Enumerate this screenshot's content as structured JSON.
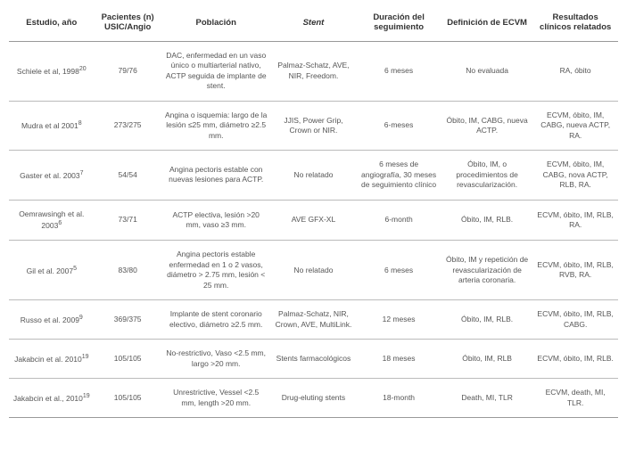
{
  "columns": [
    {
      "key": "study",
      "label": "Estudio, año",
      "italic": false
    },
    {
      "key": "n",
      "label": "Pacientes (n) USIC/Angio",
      "italic": false
    },
    {
      "key": "pop",
      "label": "Población",
      "italic": false
    },
    {
      "key": "stent",
      "label": "Stent",
      "italic": true
    },
    {
      "key": "follow",
      "label": "Duración del seguimiento",
      "italic": false
    },
    {
      "key": "ecvm",
      "label": "Definición de ECVM",
      "italic": false
    },
    {
      "key": "res",
      "label": "Resultados clínicos relatados",
      "italic": false
    }
  ],
  "rows": [
    {
      "study_pre": "Schiele  et al, 1998",
      "study_sup": "20",
      "n": "79/76",
      "pop": "DAC, enfermedad en un vaso único o multiarterial nativo, ACTP seguida de implante de stent.",
      "stent": "Palmaz-Schatz, AVE, NIR, Freedom.",
      "follow": "6 meses",
      "ecvm": "No evaluada",
      "res": "RA, óbito"
    },
    {
      "study_pre": "Mudra et al 2001",
      "study_sup": "8",
      "n": "273/275",
      "pop": "Angina o isquemia: largo de la lesión ≤25 mm, diámetro ≥2.5 mm.",
      "stent": "JJIS, Power Grip, Crown or NIR.",
      "follow": "6-meses",
      "ecvm": "Óbito, IM, CABG, nueva ACTP.",
      "res": "ECVM, óbito, IM, CABG, nueva ACTP, RA."
    },
    {
      "study_pre": "Gaster et al. 2003",
      "study_sup": "7",
      "n": "54/54",
      "pop": "Angina pectoris estable con nuevas lesiones para ACTP.",
      "stent": "No relatado",
      "follow": "6 meses de angiografía, 30 meses de seguimiento clínico",
      "ecvm": "Óbito, IM, o procedimientos de revascularización.",
      "res": "ECVM, óbito, IM, CABG, nova ACTP, RLB, RA."
    },
    {
      "study_pre": "Oemrawsingh et al. 2003",
      "study_sup": "6",
      "n": "73/71",
      "pop": "ACTP electiva, lesión >20 mm, vaso ≥3 mm.",
      "stent": "AVE GFX-XL",
      "follow": "6-month",
      "ecvm": "Óbito, IM, RLB.",
      "res": "ECVM, óbito, IM, RLB, RA."
    },
    {
      "study_pre": "Gil et al. 2007",
      "study_sup": "5",
      "n": "83/80",
      "pop": "Angina pectoris estable enfermedad en 1 o 2  vasos, diámetro > 2.75 mm, lesión < 25 mm.",
      "stent": "No relatado",
      "follow": "6 meses",
      "ecvm": "Óbito, IM  y repetición de revascularización de arteria coronaria.",
      "res": "ECVM, óbito, IM, RLB, RVB, RA."
    },
    {
      "study_pre": "Russo et al. 2009",
      "study_sup": "9",
      "n": "369/375",
      "pop": "Implante de stent coronario electivo, diámetro ≥2.5 mm.",
      "stent": "Palmaz-Schatz, NIR, Crown, AVE, MultiLink.",
      "follow": "12 meses",
      "ecvm": "Óbito, IM, RLB.",
      "res": "ECVM, óbito, IM, RLB, CABG."
    },
    {
      "study_pre": "Jakabcin et al. 2010",
      "study_sup": "19",
      "n": "105/105",
      "pop": "No-restrictivo, Vaso <2.5 mm, largo >20 mm.",
      "stent": "Stents farmacológicos",
      "follow": "18 meses",
      "ecvm": "Óbito, IM, RLB",
      "res": "ECVM, óbito, IM, RLB."
    },
    {
      "study_pre": "Jakabcin et al., 2010",
      "study_sup": "19",
      "n": "105/105",
      "pop": "Unrestrictive, Vessel <2.5 mm, length >20 mm.",
      "stent": "Drug-eluting stents",
      "follow": "18-month",
      "ecvm": "Death, MI, TLR",
      "res": "ECVM, death, MI, TLR."
    }
  ]
}
